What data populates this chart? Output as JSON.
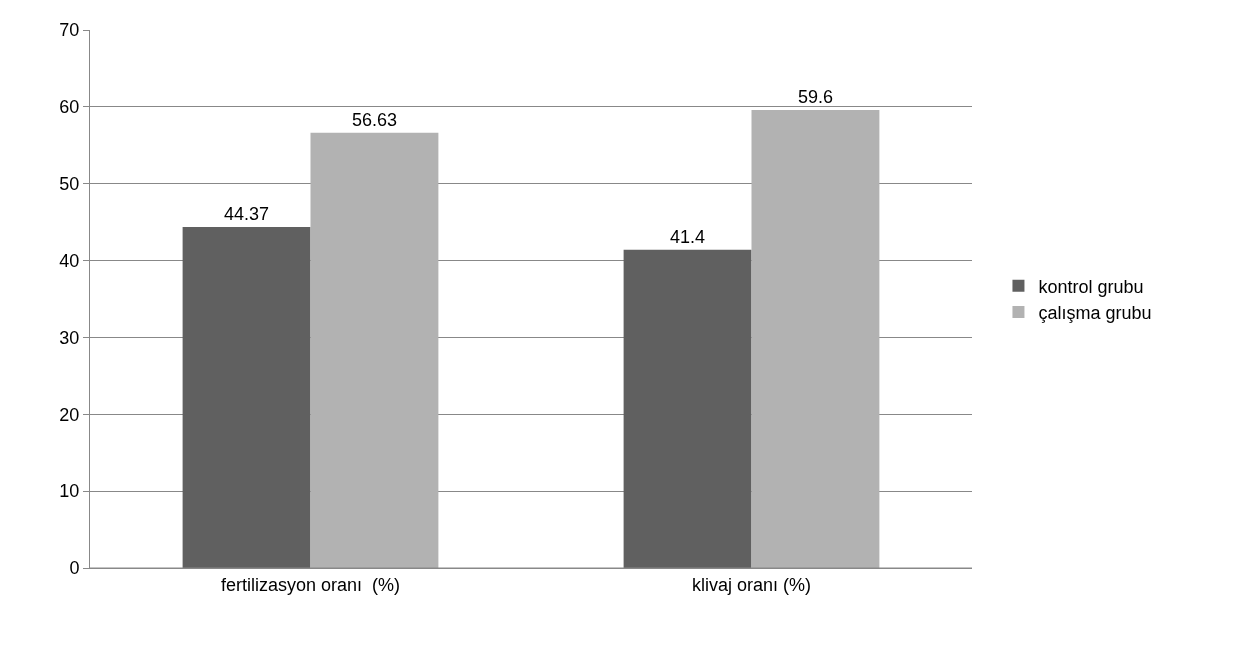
{
  "chart_data": {
    "type": "bar",
    "categories": [
      "fertilizasyon oranı  (%)",
      "klivaj oranı (%)"
    ],
    "series": [
      {
        "name": "kontrol grubu",
        "color": "#606060",
        "values": [
          44.37,
          41.4
        ]
      },
      {
        "name": "çalışma grubu",
        "color": "#b2b2b2",
        "values": [
          56.63,
          59.6
        ]
      }
    ],
    "ylim": [
      0,
      70
    ],
    "yticks": [
      0,
      10,
      20,
      30,
      40,
      50,
      60,
      70
    ],
    "grid": "y",
    "legend": "right",
    "data_labels": true
  }
}
